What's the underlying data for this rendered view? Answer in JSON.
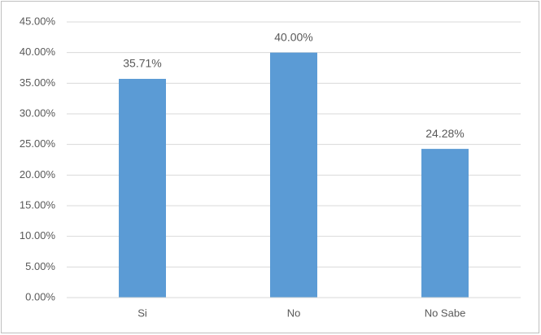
{
  "chart_data": {
    "type": "bar",
    "categories": [
      "Si",
      "No",
      "No Sabe"
    ],
    "values": [
      35.71,
      40.0,
      24.28
    ],
    "value_labels": [
      "35.71%",
      "40.00%",
      "24.28%"
    ],
    "color": "#5b9bd5",
    "ylim": [
      0,
      45
    ],
    "yticks": [
      {
        "value": 0,
        "label": "0.00%"
      },
      {
        "value": 5,
        "label": "5.00%"
      },
      {
        "value": 10,
        "label": "10.00%"
      },
      {
        "value": 15,
        "label": "15.00%"
      },
      {
        "value": 20,
        "label": "20.00%"
      },
      {
        "value": 25,
        "label": "25.00%"
      },
      {
        "value": 30,
        "label": "30.00%"
      },
      {
        "value": 35,
        "label": "35.00%"
      },
      {
        "value": 40,
        "label": "40.00%"
      },
      {
        "value": 45,
        "label": "45.00%"
      }
    ],
    "grid": true
  }
}
